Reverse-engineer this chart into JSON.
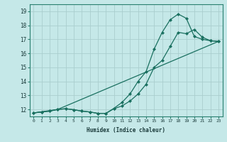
{
  "xlabel": "Humidex (Indice chaleur)",
  "xlim": [
    -0.5,
    23.5
  ],
  "ylim": [
    11.5,
    19.5
  ],
  "xticks": [
    0,
    1,
    2,
    3,
    4,
    5,
    6,
    7,
    8,
    9,
    10,
    11,
    12,
    13,
    14,
    15,
    16,
    17,
    18,
    19,
    20,
    21,
    22,
    23
  ],
  "yticks": [
    12,
    13,
    14,
    15,
    16,
    17,
    18,
    19
  ],
  "bg_color": "#c5e8e8",
  "grid_color": "#aacece",
  "line_color": "#1a7060",
  "line1_x": [
    0,
    1,
    2,
    3,
    4,
    5,
    6,
    7,
    8,
    9,
    10,
    11,
    12,
    13,
    14,
    15,
    16,
    17,
    18,
    19,
    20,
    21,
    22,
    23
  ],
  "line1_y": [
    11.75,
    11.82,
    11.88,
    12.0,
    12.05,
    11.98,
    11.88,
    11.82,
    11.72,
    11.72,
    12.08,
    12.5,
    13.1,
    14.0,
    14.7,
    16.3,
    17.5,
    18.4,
    18.8,
    18.5,
    17.2,
    17.0,
    16.9,
    16.85
  ],
  "line2_x": [
    0,
    1,
    2,
    3,
    4,
    5,
    6,
    7,
    8,
    9,
    10,
    11,
    12,
    13,
    14,
    15,
    16,
    17,
    18,
    19,
    20,
    21,
    22,
    23
  ],
  "line2_y": [
    11.75,
    11.82,
    11.88,
    12.0,
    12.05,
    11.98,
    11.88,
    11.82,
    11.72,
    11.72,
    12.05,
    12.25,
    12.6,
    13.1,
    13.8,
    15.0,
    15.5,
    16.5,
    17.5,
    17.4,
    17.7,
    17.15,
    16.9,
    16.85
  ],
  "line3_x": [
    0,
    3,
    23
  ],
  "line3_y": [
    11.75,
    12.0,
    16.85
  ],
  "marker": "D",
  "marker_size": 2.5
}
